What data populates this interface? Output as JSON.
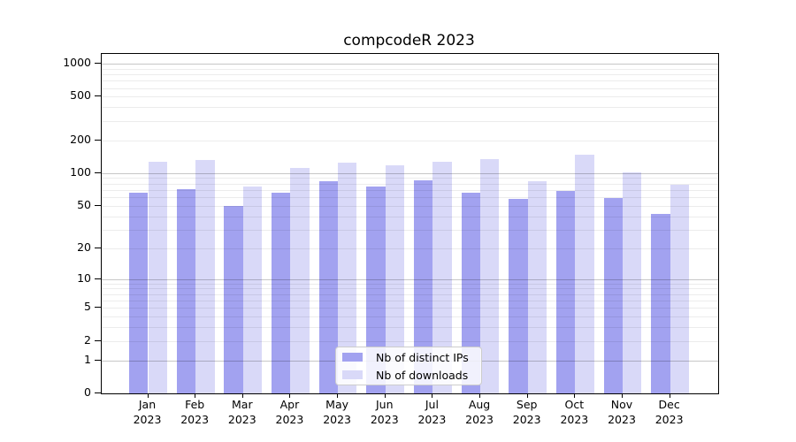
{
  "title": "compcodeR 2023",
  "chart_data": {
    "type": "bar",
    "title": "compcodeR 2023",
    "categories": [
      "Jan",
      "Feb",
      "Mar",
      "Apr",
      "May",
      "Jun",
      "Jul",
      "Aug",
      "Sep",
      "Oct",
      "Nov",
      "Dec"
    ],
    "category_year": "2023",
    "series": [
      {
        "name": "Nb of distinct IPs",
        "color": "#a2a2f0",
        "values": [
          66,
          71,
          50,
          66,
          84,
          76,
          86,
          66,
          58,
          68,
          59,
          42
        ]
      },
      {
        "name": "Nb of downloads",
        "color": "#d9d9f8",
        "values": [
          128,
          133,
          75,
          112,
          125,
          119,
          127,
          134,
          84,
          148,
          101,
          78
        ]
      }
    ],
    "y_axis": {
      "scale": "log1p",
      "tick_values": [
        0,
        1,
        2,
        5,
        10,
        20,
        50,
        100,
        200,
        500,
        1000
      ],
      "tick_labels": [
        "0",
        "1",
        "2",
        "5",
        "10",
        "20",
        "50",
        "100",
        "200",
        "500",
        "1000"
      ],
      "major_gridlines": [
        1,
        10,
        100,
        1000
      ],
      "minor_gridlines": [
        2,
        3,
        4,
        5,
        6,
        7,
        8,
        9,
        20,
        30,
        40,
        50,
        60,
        70,
        80,
        90,
        200,
        300,
        400,
        500,
        600,
        700,
        800,
        900
      ],
      "range_top": 1000
    },
    "xlabel": "",
    "ylabel": "",
    "grid": true,
    "legend": {
      "position": "inside-bottom-center",
      "entries": [
        "Nb of distinct IPs",
        "Nb of downloads"
      ]
    }
  }
}
